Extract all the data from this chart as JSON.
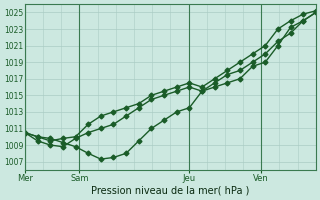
{
  "title": "",
  "xlabel": "Pression niveau de la mer( hPa )",
  "ylabel": "",
  "background_color": "#cce8e0",
  "plot_bg_color": "#cce8e0",
  "grid_color": "#aaccc4",
  "line_color": "#1a5c28",
  "vline_color": "#3a7a50",
  "ylim": [
    1006.0,
    1026.0
  ],
  "yticks": [
    1007,
    1009,
    1011,
    1013,
    1015,
    1017,
    1019,
    1021,
    1023,
    1025
  ],
  "xtick_labels": [
    "Mer",
    "Sam",
    "Jeu",
    "Ven"
  ],
  "day_positions": [
    0,
    3,
    9,
    13
  ],
  "total_steps": 16,
  "series": [
    [
      1010.5,
      1010.0,
      1009.8,
      1009.3,
      1008.8,
      1008.0,
      1007.3,
      1007.5,
      1008.0,
      1009.5,
      1011.0,
      1012.0,
      1013.0,
      1013.5,
      1015.5,
      1016.0,
      1016.5,
      1017.0,
      1018.5,
      1019.0,
      1021.0,
      1023.2,
      1024.0,
      1025.0
    ],
    [
      1010.5,
      1009.5,
      1009.0,
      1008.8,
      1009.8,
      1010.5,
      1011.0,
      1011.5,
      1012.5,
      1013.5,
      1014.5,
      1015.0,
      1015.5,
      1016.0,
      1015.5,
      1016.5,
      1017.5,
      1018.0,
      1019.0,
      1020.0,
      1021.5,
      1022.5,
      1024.0,
      1025.0
    ],
    [
      1010.5,
      1010.0,
      1009.5,
      1009.8,
      1010.0,
      1011.5,
      1012.5,
      1013.0,
      1013.5,
      1014.0,
      1015.0,
      1015.5,
      1016.0,
      1016.5,
      1016.0,
      1017.0,
      1018.0,
      1019.0,
      1020.0,
      1021.0,
      1023.0,
      1024.0,
      1024.8,
      1025.2
    ]
  ],
  "num_points": 24,
  "marker": "D",
  "markersize": 2.5,
  "linewidth": 1.0
}
